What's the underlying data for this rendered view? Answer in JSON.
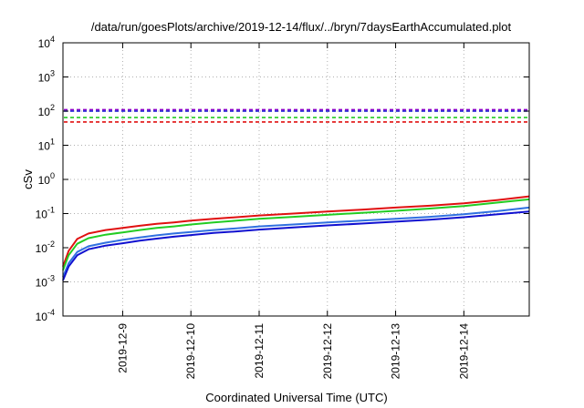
{
  "chart_data": {
    "type": "line",
    "title": "/data/run/goesPlots/archive/2019-12-14/flux/../bryn/7daysEarthAccumulated.plot",
    "xlabel": "Coordinated Universal Time (UTC)",
    "ylabel": "cSv",
    "xlim": [
      "2019-12-08 03:00",
      "2019-12-14 23:00"
    ],
    "ylim": [
      0.0001,
      10000
    ],
    "yscale": "log",
    "grid": true,
    "legend": "none",
    "y_ticks": [
      {
        "base": "10",
        "exp": "-4",
        "value": 0.0001
      },
      {
        "base": "10",
        "exp": "-3",
        "value": 0.001
      },
      {
        "base": "10",
        "exp": "-2",
        "value": 0.01
      },
      {
        "base": "10",
        "exp": "-1",
        "value": 0.1
      },
      {
        "base": "10",
        "exp": "0",
        "value": 1
      },
      {
        "base": "10",
        "exp": "1",
        "value": 10
      },
      {
        "base": "10",
        "exp": "2",
        "value": 100
      },
      {
        "base": "10",
        "exp": "3",
        "value": 1000
      },
      {
        "base": "10",
        "exp": "4",
        "value": 10000
      }
    ],
    "x_ticks": [
      "2019-12-9",
      "2019-12-10",
      "2019-12-11",
      "2019-12-12",
      "2019-12-13",
      "2019-12-14"
    ],
    "x_tick_dates": [
      "2019-12-09",
      "2019-12-10",
      "2019-12-11",
      "2019-12-12",
      "2019-12-13",
      "2019-12-14"
    ],
    "thresholds": [
      {
        "color": "#8a00c8",
        "value": 110
      },
      {
        "color": "#1010d0",
        "value": 100
      },
      {
        "color": "#22cc22",
        "value": 65
      },
      {
        "color": "#e01010",
        "value": 48
      }
    ],
    "series": [
      {
        "color": "#e01010",
        "points": [
          [
            "2019-12-08 03:00",
            0.0028
          ],
          [
            "2019-12-08 05:00",
            0.008
          ],
          [
            "2019-12-08 08:00",
            0.018
          ],
          [
            "2019-12-08 12:00",
            0.026
          ],
          [
            "2019-12-08 18:00",
            0.033
          ],
          [
            "2019-12-09 00:00",
            0.038
          ],
          [
            "2019-12-09 06:00",
            0.044
          ],
          [
            "2019-12-09 12:00",
            0.05
          ],
          [
            "2019-12-09 18:00",
            0.055
          ],
          [
            "2019-12-10 00:00",
            0.062
          ],
          [
            "2019-12-10 08:00",
            0.07
          ],
          [
            "2019-12-10 16:00",
            0.078
          ],
          [
            "2019-12-11 00:00",
            0.088
          ],
          [
            "2019-12-11 12:00",
            0.1
          ],
          [
            "2019-12-12 00:00",
            0.115
          ],
          [
            "2019-12-12 12:00",
            0.13
          ],
          [
            "2019-12-13 00:00",
            0.15
          ],
          [
            "2019-12-13 12:00",
            0.17
          ],
          [
            "2019-12-14 00:00",
            0.2
          ],
          [
            "2019-12-14 12:00",
            0.25
          ],
          [
            "2019-12-14 23:00",
            0.32
          ]
        ]
      },
      {
        "color": "#22cc22",
        "points": [
          [
            "2019-12-08 03:00",
            0.0022
          ],
          [
            "2019-12-08 05:00",
            0.006
          ],
          [
            "2019-12-08 08:00",
            0.013
          ],
          [
            "2019-12-08 12:00",
            0.019
          ],
          [
            "2019-12-08 18:00",
            0.024
          ],
          [
            "2019-12-09 00:00",
            0.028
          ],
          [
            "2019-12-09 06:00",
            0.033
          ],
          [
            "2019-12-09 12:00",
            0.038
          ],
          [
            "2019-12-09 18:00",
            0.042
          ],
          [
            "2019-12-10 00:00",
            0.048
          ],
          [
            "2019-12-10 08:00",
            0.055
          ],
          [
            "2019-12-10 16:00",
            0.062
          ],
          [
            "2019-12-11 00:00",
            0.07
          ],
          [
            "2019-12-11 12:00",
            0.08
          ],
          [
            "2019-12-12 00:00",
            0.092
          ],
          [
            "2019-12-12 12:00",
            0.105
          ],
          [
            "2019-12-13 00:00",
            0.12
          ],
          [
            "2019-12-13 12:00",
            0.14
          ],
          [
            "2019-12-14 00:00",
            0.165
          ],
          [
            "2019-12-14 12:00",
            0.21
          ],
          [
            "2019-12-14 23:00",
            0.26
          ]
        ]
      },
      {
        "color": "#3070e0",
        "points": [
          [
            "2019-12-08 03:00",
            0.0014
          ],
          [
            "2019-12-08 05:00",
            0.0035
          ],
          [
            "2019-12-08 08:00",
            0.0075
          ],
          [
            "2019-12-08 12:00",
            0.011
          ],
          [
            "2019-12-08 18:00",
            0.014
          ],
          [
            "2019-12-09 00:00",
            0.017
          ],
          [
            "2019-12-09 06:00",
            0.02
          ],
          [
            "2019-12-09 12:00",
            0.023
          ],
          [
            "2019-12-09 18:00",
            0.026
          ],
          [
            "2019-12-10 00:00",
            0.029
          ],
          [
            "2019-12-10 08:00",
            0.033
          ],
          [
            "2019-12-10 16:00",
            0.037
          ],
          [
            "2019-12-11 00:00",
            0.042
          ],
          [
            "2019-12-11 12:00",
            0.048
          ],
          [
            "2019-12-12 00:00",
            0.055
          ],
          [
            "2019-12-12 12:00",
            0.062
          ],
          [
            "2019-12-13 00:00",
            0.07
          ],
          [
            "2019-12-13 12:00",
            0.08
          ],
          [
            "2019-12-14 00:00",
            0.095
          ],
          [
            "2019-12-14 12:00",
            0.118
          ],
          [
            "2019-12-14 23:00",
            0.15
          ]
        ]
      },
      {
        "color": "#1010d0",
        "points": [
          [
            "2019-12-08 03:00",
            0.0011
          ],
          [
            "2019-12-08 05:00",
            0.0028
          ],
          [
            "2019-12-08 08:00",
            0.006
          ],
          [
            "2019-12-08 12:00",
            0.009
          ],
          [
            "2019-12-08 18:00",
            0.0115
          ],
          [
            "2019-12-09 00:00",
            0.0135
          ],
          [
            "2019-12-09 06:00",
            0.016
          ],
          [
            "2019-12-09 12:00",
            0.0185
          ],
          [
            "2019-12-09 18:00",
            0.021
          ],
          [
            "2019-12-10 00:00",
            0.0235
          ],
          [
            "2019-12-10 08:00",
            0.027
          ],
          [
            "2019-12-10 16:00",
            0.03
          ],
          [
            "2019-12-11 00:00",
            0.034
          ],
          [
            "2019-12-11 12:00",
            0.039
          ],
          [
            "2019-12-12 00:00",
            0.045
          ],
          [
            "2019-12-12 12:00",
            0.051
          ],
          [
            "2019-12-13 00:00",
            0.058
          ],
          [
            "2019-12-13 12:00",
            0.066
          ],
          [
            "2019-12-14 00:00",
            0.078
          ],
          [
            "2019-12-14 12:00",
            0.095
          ],
          [
            "2019-12-14 23:00",
            0.115
          ]
        ]
      }
    ]
  }
}
